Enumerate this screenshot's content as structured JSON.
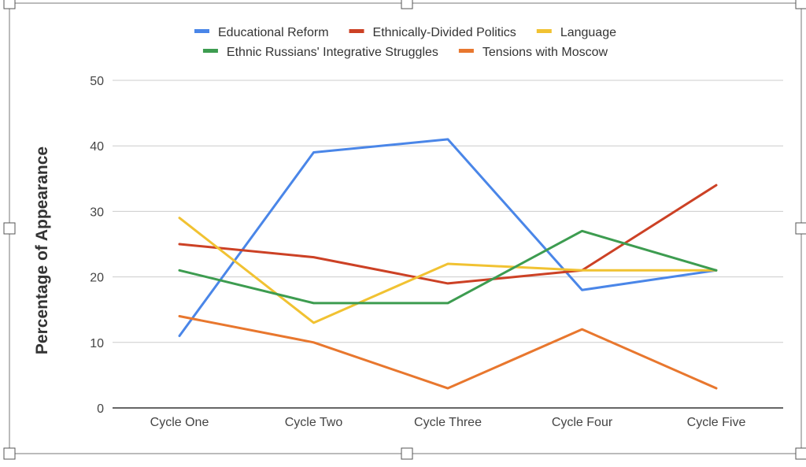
{
  "chart_data": {
    "type": "line",
    "title": "",
    "xlabel": "",
    "ylabel": "Percentage of Appearance",
    "categories": [
      "Cycle One",
      "Cycle Two",
      "Cycle Three",
      "Cycle Four",
      "Cycle Five"
    ],
    "ylim": [
      0,
      50
    ],
    "yticks": [
      0,
      10,
      20,
      30,
      40,
      50
    ],
    "grid": true,
    "legend_position": "top",
    "series": [
      {
        "name": "Educational Reform",
        "color": "#4a86e8",
        "values": [
          11,
          39,
          41,
          18,
          21
        ]
      },
      {
        "name": "Ethnically-Divided Politics",
        "color": "#cc4125",
        "values": [
          25,
          23,
          19,
          21,
          34
        ]
      },
      {
        "name": "Language",
        "color": "#f1c232",
        "values": [
          29,
          13,
          22,
          21,
          21
        ]
      },
      {
        "name": "Ethnic Russians' Integrative Struggles",
        "color": "#3d9c50",
        "values": [
          21,
          16,
          16,
          27,
          21
        ]
      },
      {
        "name": "Tensions with Moscow",
        "color": "#e8772e",
        "values": [
          14,
          10,
          3,
          12,
          3
        ]
      }
    ]
  }
}
